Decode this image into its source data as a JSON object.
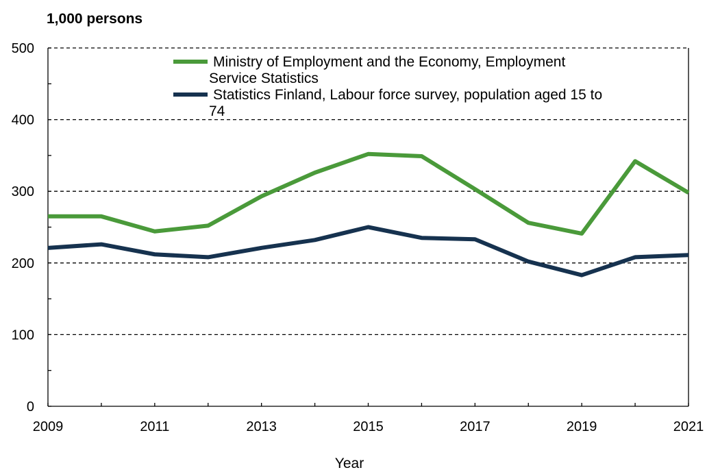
{
  "chart_data": {
    "type": "line",
    "ylabel": "1,000 persons",
    "xlabel": "Year",
    "x": [
      2009,
      2010,
      2011,
      2012,
      2013,
      2014,
      2015,
      2016,
      2017,
      2018,
      2019,
      2020,
      2021
    ],
    "x_tick_labels": [
      "2009",
      "2011",
      "2013",
      "2015",
      "2017",
      "2019",
      "2021"
    ],
    "y_tick_labels": [
      "0",
      "100",
      "200",
      "300",
      "400",
      "500"
    ],
    "xlim": [
      2009,
      2021
    ],
    "ylim": [
      0,
      500
    ],
    "grid": "horizontal dashed",
    "legend_position": "top",
    "series": [
      {
        "name": "Ministry of Employment and the Economy, Employment Service Statistics",
        "name_lines": [
          "Ministry of Employment and the Economy, Employment",
          "Service Statistics"
        ],
        "color": "#4a9a3a",
        "values": [
          265,
          265,
          244,
          252,
          293,
          326,
          352,
          349,
          303,
          256,
          241,
          342,
          298
        ]
      },
      {
        "name": "Statistics Finland, Labour force survey, population aged 15 to 74",
        "name_lines": [
          "Statistics Finland, Labour force survey, population aged 15 to",
          "74"
        ],
        "color": "#16324f",
        "values": [
          221,
          226,
          212,
          208,
          221,
          232,
          250,
          235,
          233,
          202,
          183,
          208,
          211
        ]
      }
    ]
  }
}
